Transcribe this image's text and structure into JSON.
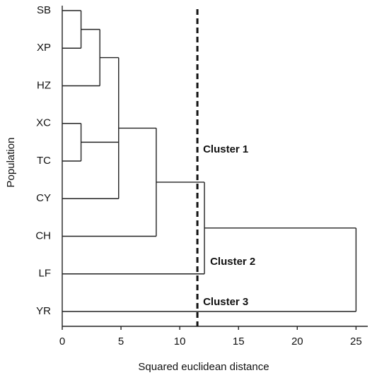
{
  "chart_data": {
    "type": "dendrogram",
    "x_label": "Squared euclidean distance",
    "y_label": "Population",
    "xlim": [
      0,
      26
    ],
    "xticks": [
      0,
      5,
      10,
      15,
      20,
      25
    ],
    "cutoff": 11.5,
    "annotations": [
      "Cluster 1",
      "Cluster 2",
      "Cluster 3"
    ],
    "tree": {
      "height": 25,
      "children": [
        {
          "height": 12.1,
          "children": [
            {
              "height": 8,
              "children": [
                {
                  "height": 4.8,
                  "children": [
                    {
                      "height": 3.2,
                      "children": [
                        {
                          "height": 1.6,
                          "children": [
                            {
                              "label": "SB"
                            },
                            {
                              "label": "XP"
                            }
                          ]
                        },
                        {
                          "label": "HZ"
                        }
                      ]
                    },
                    {
                      "height": 1.6,
                      "children": [
                        {
                          "label": "XC"
                        },
                        {
                          "label": "TC"
                        }
                      ]
                    },
                    {
                      "label": "CY"
                    }
                  ]
                },
                {
                  "label": "CH"
                }
              ]
            },
            {
              "label": "LF"
            }
          ]
        },
        {
          "label": "YR"
        }
      ]
    }
  }
}
